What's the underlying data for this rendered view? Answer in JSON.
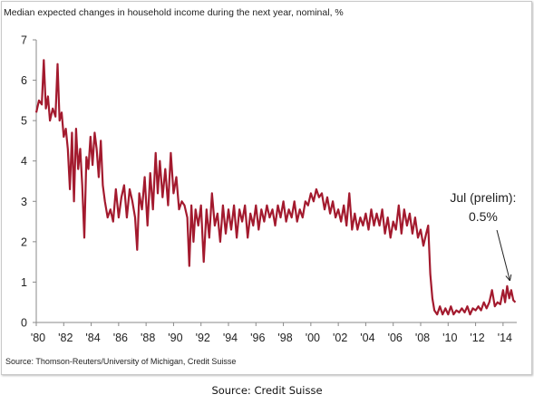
{
  "chart_data": {
    "type": "line",
    "title": "Median expected changes in household income during the next year, nominal, %",
    "xlabel": "",
    "ylabel": "",
    "xlim": [
      1980,
      2015
    ],
    "ylim": [
      0,
      7
    ],
    "yticks": [
      0,
      1,
      2,
      3,
      4,
      5,
      6,
      7
    ],
    "xticks": [
      "'80",
      "'82",
      "'84",
      "'86",
      "'88",
      "'90",
      "'92",
      "'94",
      "'96",
      "'98",
      "'00",
      "'02",
      "'04",
      "'06",
      "'08",
      "'10",
      "'12",
      "'14"
    ],
    "grid": false,
    "legend": "none",
    "series": [
      {
        "color": "#a31a2e",
        "points": [
          [
            1980.0,
            5.2
          ],
          [
            1980.2,
            5.5
          ],
          [
            1980.4,
            5.4
          ],
          [
            1980.55,
            6.5
          ],
          [
            1980.7,
            5.3
          ],
          [
            1980.85,
            5.6
          ],
          [
            1981.0,
            5.0
          ],
          [
            1981.2,
            5.3
          ],
          [
            1981.4,
            5.1
          ],
          [
            1981.55,
            6.4
          ],
          [
            1981.7,
            5.0
          ],
          [
            1981.85,
            5.2
          ],
          [
            1982.0,
            4.6
          ],
          [
            1982.15,
            4.8
          ],
          [
            1982.3,
            4.3
          ],
          [
            1982.45,
            3.3
          ],
          [
            1982.6,
            4.7
          ],
          [
            1982.75,
            3.0
          ],
          [
            1982.9,
            4.8
          ],
          [
            1983.05,
            3.8
          ],
          [
            1983.2,
            4.3
          ],
          [
            1983.35,
            3.4
          ],
          [
            1983.5,
            2.1
          ],
          [
            1983.65,
            4.1
          ],
          [
            1983.8,
            3.8
          ],
          [
            1983.95,
            4.6
          ],
          [
            1984.1,
            3.9
          ],
          [
            1984.25,
            4.7
          ],
          [
            1984.4,
            4.3
          ],
          [
            1984.55,
            3.6
          ],
          [
            1984.7,
            4.5
          ],
          [
            1984.85,
            3.4
          ],
          [
            1985.0,
            3.0
          ],
          [
            1985.2,
            2.6
          ],
          [
            1985.4,
            2.8
          ],
          [
            1985.6,
            2.5
          ],
          [
            1985.8,
            3.3
          ],
          [
            1986.0,
            2.6
          ],
          [
            1986.2,
            3.1
          ],
          [
            1986.4,
            3.4
          ],
          [
            1986.6,
            2.6
          ],
          [
            1986.8,
            3.3
          ],
          [
            1987.0,
            3.0
          ],
          [
            1987.2,
            2.6
          ],
          [
            1987.35,
            1.8
          ],
          [
            1987.5,
            3.2
          ],
          [
            1987.7,
            2.8
          ],
          [
            1987.9,
            3.6
          ],
          [
            1988.1,
            2.4
          ],
          [
            1988.3,
            3.7
          ],
          [
            1988.5,
            2.8
          ],
          [
            1988.7,
            4.2
          ],
          [
            1988.85,
            3.2
          ],
          [
            1989.0,
            4.0
          ],
          [
            1989.2,
            3.1
          ],
          [
            1989.4,
            3.8
          ],
          [
            1989.6,
            2.9
          ],
          [
            1989.8,
            4.2
          ],
          [
            1990.0,
            3.2
          ],
          [
            1990.2,
            3.6
          ],
          [
            1990.4,
            2.8
          ],
          [
            1990.6,
            3.0
          ],
          [
            1990.8,
            2.9
          ],
          [
            1991.0,
            2.6
          ],
          [
            1991.15,
            1.4
          ],
          [
            1991.3,
            2.9
          ],
          [
            1991.45,
            2.0
          ],
          [
            1991.6,
            2.8
          ],
          [
            1991.8,
            2.4
          ],
          [
            1992.0,
            2.9
          ],
          [
            1992.2,
            1.5
          ],
          [
            1992.4,
            2.8
          ],
          [
            1992.6,
            2.1
          ],
          [
            1992.8,
            3.2
          ],
          [
            1993.0,
            2.4
          ],
          [
            1993.2,
            2.7
          ],
          [
            1993.4,
            2.0
          ],
          [
            1993.6,
            2.9
          ],
          [
            1993.8,
            2.2
          ],
          [
            1994.0,
            2.8
          ],
          [
            1994.2,
            2.3
          ],
          [
            1994.4,
            2.9
          ],
          [
            1994.6,
            2.1
          ],
          [
            1994.8,
            2.8
          ],
          [
            1995.0,
            2.5
          ],
          [
            1995.2,
            2.9
          ],
          [
            1995.4,
            2.1
          ],
          [
            1995.6,
            2.7
          ],
          [
            1995.8,
            2.4
          ],
          [
            1996.0,
            2.9
          ],
          [
            1996.2,
            2.3
          ],
          [
            1996.4,
            2.8
          ],
          [
            1996.6,
            2.5
          ],
          [
            1996.8,
            2.9
          ],
          [
            1997.0,
            2.6
          ],
          [
            1997.2,
            2.8
          ],
          [
            1997.4,
            2.4
          ],
          [
            1997.6,
            2.9
          ],
          [
            1997.8,
            2.6
          ],
          [
            1998.0,
            3.0
          ],
          [
            1998.2,
            2.5
          ],
          [
            1998.4,
            2.8
          ],
          [
            1998.6,
            2.6
          ],
          [
            1998.8,
            3.0
          ],
          [
            1999.0,
            2.5
          ],
          [
            1999.2,
            2.8
          ],
          [
            1999.4,
            2.6
          ],
          [
            1999.6,
            3.0
          ],
          [
            1999.8,
            2.9
          ],
          [
            2000.0,
            3.2
          ],
          [
            2000.2,
            3.0
          ],
          [
            2000.4,
            3.3
          ],
          [
            2000.6,
            3.1
          ],
          [
            2000.8,
            3.2
          ],
          [
            2001.0,
            2.8
          ],
          [
            2001.2,
            3.1
          ],
          [
            2001.4,
            2.7
          ],
          [
            2001.6,
            3.0
          ],
          [
            2001.8,
            2.6
          ],
          [
            2002.0,
            2.8
          ],
          [
            2002.2,
            2.5
          ],
          [
            2002.4,
            2.9
          ],
          [
            2002.6,
            2.4
          ],
          [
            2002.8,
            3.2
          ],
          [
            2003.0,
            2.3
          ],
          [
            2003.2,
            2.7
          ],
          [
            2003.4,
            2.3
          ],
          [
            2003.6,
            2.6
          ],
          [
            2003.8,
            2.4
          ],
          [
            2004.0,
            2.7
          ],
          [
            2004.2,
            2.3
          ],
          [
            2004.4,
            2.8
          ],
          [
            2004.6,
            2.4
          ],
          [
            2004.8,
            2.7
          ],
          [
            2005.0,
            2.4
          ],
          [
            2005.2,
            2.8
          ],
          [
            2005.4,
            2.2
          ],
          [
            2005.6,
            2.6
          ],
          [
            2005.8,
            2.1
          ],
          [
            2006.0,
            2.5
          ],
          [
            2006.2,
            2.3
          ],
          [
            2006.4,
            2.9
          ],
          [
            2006.6,
            2.2
          ],
          [
            2006.8,
            2.8
          ],
          [
            2007.0,
            2.4
          ],
          [
            2007.2,
            2.7
          ],
          [
            2007.4,
            2.2
          ],
          [
            2007.6,
            2.6
          ],
          [
            2007.8,
            2.1
          ],
          [
            2008.0,
            2.3
          ],
          [
            2008.2,
            1.9
          ],
          [
            2008.4,
            2.2
          ],
          [
            2008.55,
            2.4
          ],
          [
            2008.7,
            1.2
          ],
          [
            2008.85,
            0.6
          ],
          [
            2009.0,
            0.3
          ],
          [
            2009.2,
            0.2
          ],
          [
            2009.4,
            0.4
          ],
          [
            2009.6,
            0.2
          ],
          [
            2009.8,
            0.35
          ],
          [
            2010.0,
            0.2
          ],
          [
            2010.2,
            0.4
          ],
          [
            2010.4,
            0.2
          ],
          [
            2010.6,
            0.3
          ],
          [
            2010.8,
            0.25
          ],
          [
            2011.0,
            0.35
          ],
          [
            2011.2,
            0.25
          ],
          [
            2011.4,
            0.4
          ],
          [
            2011.6,
            0.2
          ],
          [
            2011.8,
            0.35
          ],
          [
            2012.0,
            0.3
          ],
          [
            2012.2,
            0.4
          ],
          [
            2012.4,
            0.3
          ],
          [
            2012.6,
            0.5
          ],
          [
            2012.8,
            0.35
          ],
          [
            2013.0,
            0.5
          ],
          [
            2013.2,
            0.8
          ],
          [
            2013.4,
            0.4
          ],
          [
            2013.6,
            0.5
          ],
          [
            2013.8,
            0.45
          ],
          [
            2014.0,
            0.8
          ],
          [
            2014.15,
            0.5
          ],
          [
            2014.3,
            0.9
          ],
          [
            2014.45,
            0.6
          ],
          [
            2014.6,
            0.8
          ],
          [
            2014.75,
            0.55
          ],
          [
            2014.9,
            0.5
          ]
        ]
      }
    ],
    "annotation": {
      "lines": [
        "Jul (prelim):",
        "0.5%"
      ],
      "target": [
        2014.5,
        0.9
      ]
    }
  },
  "source_line": "Source:  Thomson-Reuters/University of Michigan, Credit Suisse",
  "caption": "Source: Credit Suisse",
  "colors": {
    "series": "#a31a2e",
    "axis": "#8a8a8a"
  }
}
